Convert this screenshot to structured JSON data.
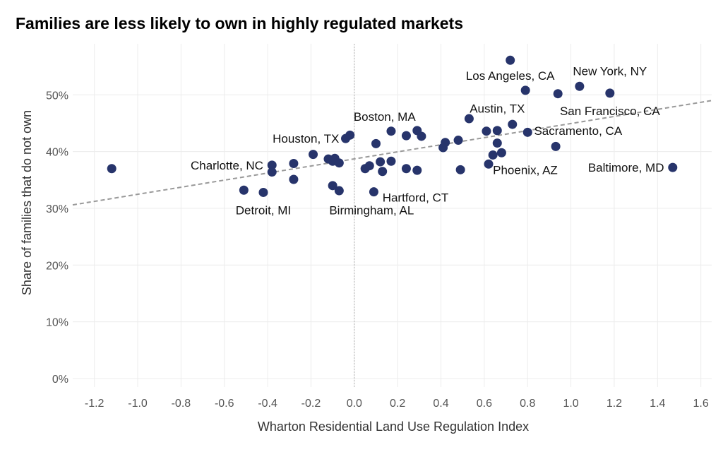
{
  "chart_data": {
    "type": "scatter",
    "title": "Families are less likely to own in highly regulated markets",
    "xlabel": "Wharton Residential Land Use Regulation Index",
    "ylabel": "Share of families that do not own",
    "xlim": [
      -1.3,
      1.65
    ],
    "ylim": [
      -1.5,
      59
    ],
    "x_ticks": [
      -1.2,
      -1.0,
      -0.8,
      -0.6,
      -0.4,
      -0.2,
      0.0,
      0.2,
      0.4,
      0.6,
      0.8,
      1.0,
      1.2,
      1.4,
      1.6
    ],
    "x_tick_labels": [
      "-1.2",
      "-1.0",
      "-0.8",
      "-0.6",
      "-0.4",
      "-0.2",
      "0.0",
      "0.2",
      "0.4",
      "0.6",
      "0.8",
      "1.0",
      "1.2",
      "1.4",
      "1.6"
    ],
    "y_ticks": [
      0,
      10,
      20,
      30,
      40,
      50
    ],
    "y_tick_labels": [
      "0%",
      "10%",
      "20%",
      "30%",
      "40%",
      "50%"
    ],
    "grid": true,
    "zero_line_x": 0,
    "point_color": "#27346b",
    "trend_color": "#999999",
    "trendline": {
      "x": [
        -1.3,
        1.65
      ],
      "y": [
        30.6,
        49.0
      ]
    },
    "points": [
      {
        "x": -1.12,
        "y": 37.0
      },
      {
        "x": -0.51,
        "y": 33.2
      },
      {
        "x": -0.42,
        "y": 32.8
      },
      {
        "x": -0.38,
        "y": 37.6,
        "label": "Charlotte, NC"
      },
      {
        "x": -0.38,
        "y": 36.4
      },
      {
        "x": -0.28,
        "y": 37.9
      },
      {
        "x": -0.28,
        "y": 35.1
      },
      {
        "x": -0.19,
        "y": 39.5
      },
      {
        "x": -0.12,
        "y": 38.7
      },
      {
        "x": -0.1,
        "y": 38.3
      },
      {
        "x": -0.09,
        "y": 38.8
      },
      {
        "x": -0.07,
        "y": 38.0
      },
      {
        "x": -0.04,
        "y": 42.3,
        "label": "Houston, TX"
      },
      {
        "x": -0.02,
        "y": 42.9
      },
      {
        "x": -0.1,
        "y": 34.0
      },
      {
        "x": -0.07,
        "y": 33.1
      },
      {
        "x": 0.05,
        "y": 37.0
      },
      {
        "x": 0.07,
        "y": 37.5
      },
      {
        "x": 0.09,
        "y": 32.9
      },
      {
        "x": 0.1,
        "y": 41.4
      },
      {
        "x": 0.12,
        "y": 38.2
      },
      {
        "x": 0.13,
        "y": 36.5
      },
      {
        "x": 0.17,
        "y": 38.3
      },
      {
        "x": 0.17,
        "y": 43.6,
        "label": "Boston, MA"
      },
      {
        "x": 0.24,
        "y": 37.0
      },
      {
        "x": 0.24,
        "y": 42.8
      },
      {
        "x": 0.29,
        "y": 43.7
      },
      {
        "x": 0.29,
        "y": 36.7
      },
      {
        "x": 0.31,
        "y": 42.7
      },
      {
        "x": 0.41,
        "y": 40.7
      },
      {
        "x": 0.42,
        "y": 41.6
      },
      {
        "x": 0.48,
        "y": 42.0
      },
      {
        "x": 0.49,
        "y": 36.8
      },
      {
        "x": 0.53,
        "y": 45.8
      },
      {
        "x": 0.61,
        "y": 43.6
      },
      {
        "x": 0.62,
        "y": 37.8
      },
      {
        "x": 0.64,
        "y": 39.4
      },
      {
        "x": 0.66,
        "y": 43.7
      },
      {
        "x": 0.66,
        "y": 41.5
      },
      {
        "x": 0.68,
        "y": 39.8
      },
      {
        "x": 0.72,
        "y": 56.1
      },
      {
        "x": 0.73,
        "y": 44.8
      },
      {
        "x": 0.79,
        "y": 50.8
      },
      {
        "x": 0.8,
        "y": 43.4
      },
      {
        "x": 0.93,
        "y": 40.9
      },
      {
        "x": 0.94,
        "y": 50.2
      },
      {
        "x": 1.04,
        "y": 51.5
      },
      {
        "x": 1.18,
        "y": 50.3
      },
      {
        "x": 1.47,
        "y": 37.2
      }
    ],
    "annotations": [
      {
        "text": "Los Angeles, CA",
        "x": 0.72,
        "y": 53.4,
        "anchor": "middle"
      },
      {
        "text": "New York, NY",
        "x": 1.18,
        "y": 54.2,
        "anchor": "middle"
      },
      {
        "text": "Austin, TX",
        "x": 0.66,
        "y": 47.6,
        "anchor": "middle"
      },
      {
        "text": "San Francisco, CA",
        "x": 1.18,
        "y": 47.2,
        "anchor": "middle"
      },
      {
        "text": "Boston, MA",
        "x": 0.14,
        "y": 46.2,
        "anchor": "middle"
      },
      {
        "text": "Sacramento, CA",
        "x": 0.83,
        "y": 43.7,
        "anchor": "start"
      },
      {
        "text": "Houston, TX",
        "x": -0.07,
        "y": 42.3,
        "anchor": "end"
      },
      {
        "text": "Charlotte, NC",
        "x": -0.42,
        "y": 37.6,
        "anchor": "end"
      },
      {
        "text": "Baltimore, MD",
        "x": 1.43,
        "y": 37.2,
        "anchor": "end"
      },
      {
        "text": "Phoenix, AZ",
        "x": 0.64,
        "y": 36.8,
        "anchor": "start"
      },
      {
        "text": "Hartford, CT",
        "x": 0.13,
        "y": 31.9,
        "anchor": "start"
      },
      {
        "text": "Detroit, MI",
        "x": -0.42,
        "y": 29.7,
        "anchor": "middle"
      },
      {
        "text": "Birmingham, AL",
        "x": 0.08,
        "y": 29.7,
        "anchor": "middle"
      }
    ]
  }
}
